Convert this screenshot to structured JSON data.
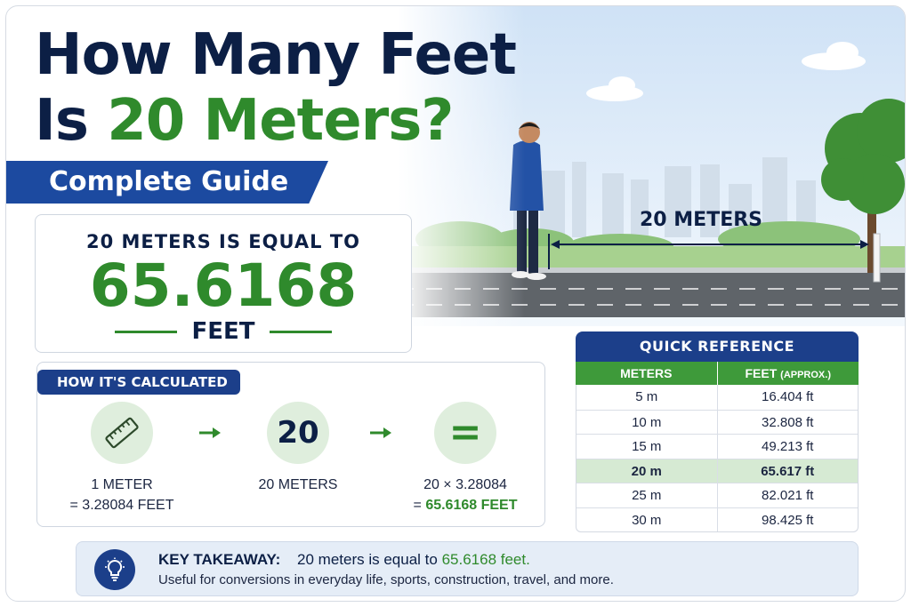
{
  "title": {
    "line1": "How Many Feet",
    "line2_prefix": "Is",
    "line2_highlight": "20 Meters?"
  },
  "subtitle": "Complete Guide",
  "answer": {
    "intro": "20 METERS IS EQUAL TO",
    "value": "65.6168",
    "unit": "FEET"
  },
  "scene": {
    "distance_label": "20 METERS"
  },
  "calculation": {
    "heading": "HOW IT'S CALCULATED",
    "step1": {
      "icon": "ruler-icon",
      "line1": "1 METER",
      "line2": "= 3.28084 FEET"
    },
    "step2": {
      "number": "20",
      "label": "20 METERS"
    },
    "step3": {
      "symbol": "=",
      "line1": "20 × 3.28084",
      "line2_prefix": "= ",
      "line2_highlight": "65.6168 FEET"
    }
  },
  "quick_reference": {
    "title": "QUICK REFERENCE",
    "col_meters": "METERS",
    "col_feet": "FEET",
    "col_feet_note": "(APPROX.)",
    "rows": [
      {
        "meters": "5 m",
        "feet": "16.404 ft"
      },
      {
        "meters": "10 m",
        "feet": "32.808 ft"
      },
      {
        "meters": "15 m",
        "feet": "49.213 ft"
      },
      {
        "meters": "20 m",
        "feet": "65.617 ft"
      },
      {
        "meters": "25 m",
        "feet": "82.021 ft"
      },
      {
        "meters": "30 m",
        "feet": "98.425 ft"
      }
    ],
    "highlighted_meters": "20 m"
  },
  "takeaway": {
    "label": "KEY TAKEAWAY:",
    "text_prefix": "20 meters is equal to",
    "text_highlight": "65.6168 feet.",
    "detail": "Useful for conversions in everyday life, sports, construction, travel, and more."
  },
  "colors": {
    "navy": "#0c1f45",
    "brand_blue": "#1c4aa0",
    "green": "#2f8a2c",
    "light_green": "#dfeedd"
  }
}
